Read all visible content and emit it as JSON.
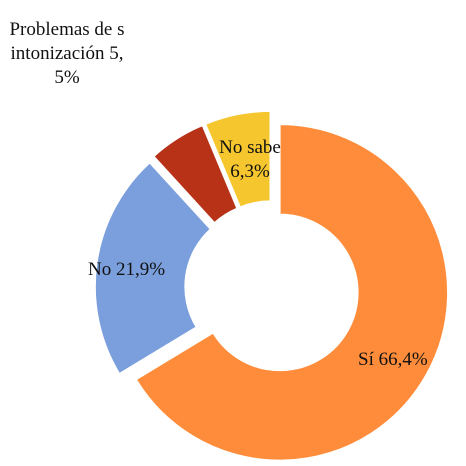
{
  "chart_data": {
    "type": "donut",
    "categories": [
      "Sí",
      "No",
      "Problemas de sintonización",
      "No sabe"
    ],
    "values": [
      66.4,
      21.9,
      5.5,
      6.3
    ],
    "value_labels": [
      "66,4%",
      "21,9%",
      "5,5%",
      "6,3%"
    ],
    "colors": [
      "#ff8c3a",
      "#7a9fdc",
      "#b83218",
      "#f5c62e"
    ]
  }
}
